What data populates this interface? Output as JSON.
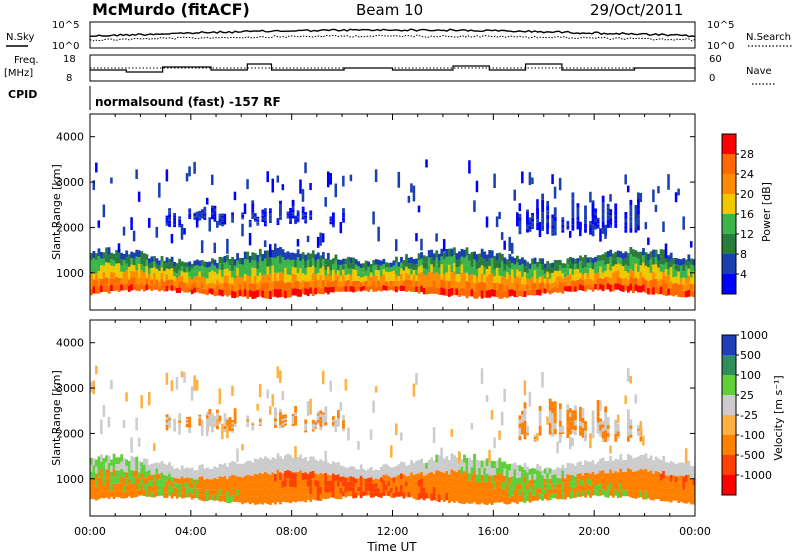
{
  "header": {
    "station": "McMurdo (fitACF)",
    "beam": "Beam 10",
    "date": "29/Oct/2011"
  },
  "noise_panel": {
    "left_label": "N.Sky",
    "right_label": "N.Search",
    "ticks_left": [
      "10^5",
      "10^0"
    ],
    "ticks_right": [
      "10^5",
      "10^0"
    ]
  },
  "freq_panel": {
    "left_label_1": "Freq.",
    "left_label_2": "[MHz]",
    "ticks_left": [
      "18",
      "8"
    ],
    "right_label": "Nave",
    "ticks_right": [
      "60",
      "0"
    ]
  },
  "cpid_panel": {
    "label": "CPID",
    "text": "normalsound (fast) -157 RF"
  },
  "power_panel": {
    "ylabel": "Slant Range [km]",
    "yticks": [
      "1000",
      "2000",
      "3000",
      "4000"
    ],
    "colorbar_label": "Power [dB]",
    "colorbar_ticks": [
      "4",
      "8",
      "12",
      "16",
      "20",
      "24",
      "28"
    ],
    "colors": [
      "#0000ff",
      "#1a3fb0",
      "#2a7b3e",
      "#3bb54a",
      "#f0c800",
      "#ff8c00",
      "#ff6a00",
      "#ff0000"
    ]
  },
  "velocity_panel": {
    "ylabel": "Slant Range [km]",
    "yticks": [
      "1000",
      "2000",
      "3000",
      "4000"
    ],
    "colorbar_label": "Velocity [m s⁻¹]",
    "colorbar_ticks": [
      "1000",
      "500",
      "100",
      "25",
      "-25",
      "-100",
      "-500",
      "-1000"
    ],
    "colors": [
      "#1f3fb8",
      "#2f8f5a",
      "#5fcf3a",
      "#cccccc",
      "#ffb040",
      "#ff8000",
      "#ff4000",
      "#ff0000"
    ]
  },
  "xaxis": {
    "label": "Time UT",
    "ticks": [
      "00:00",
      "04:00",
      "08:00",
      "12:00",
      "16:00",
      "20:00",
      "00:00"
    ]
  },
  "chart_data": {
    "type": "heatmap",
    "title": "McMurdo (fitACF)",
    "x": [
      "00:00",
      "04:00",
      "08:00",
      "12:00",
      "16:00",
      "20:00",
      "00:00"
    ],
    "ylabel": "Slant Range [km]",
    "ylim": [
      180,
      4500
    ],
    "xlabel": "Time UT",
    "panels": [
      {
        "name": "Power",
        "unit": "dB",
        "range": [
          0,
          30
        ],
        "colorbar_ticks": [
          4,
          8,
          12,
          16,
          20,
          24,
          28
        ]
      },
      {
        "name": "Velocity",
        "unit": "m s-1",
        "range": [
          -1000,
          1000
        ],
        "colorbar_ticks": [
          1000,
          500,
          100,
          25,
          -25,
          -100,
          -500,
          -1000
        ]
      }
    ],
    "echo_regions": [
      {
        "t_start": 0,
        "t_end": 24,
        "range_low": 500,
        "range_high": 1400,
        "power": 24,
        "velocity": -100
      },
      {
        "t_start": 3,
        "t_end": 10,
        "range_low": 2000,
        "range_high": 2600,
        "power": 8,
        "velocity": -100
      },
      {
        "t_start": 17,
        "t_end": 22,
        "range_low": 1800,
        "range_high": 3200,
        "power": 6,
        "velocity": -100
      }
    ]
  }
}
